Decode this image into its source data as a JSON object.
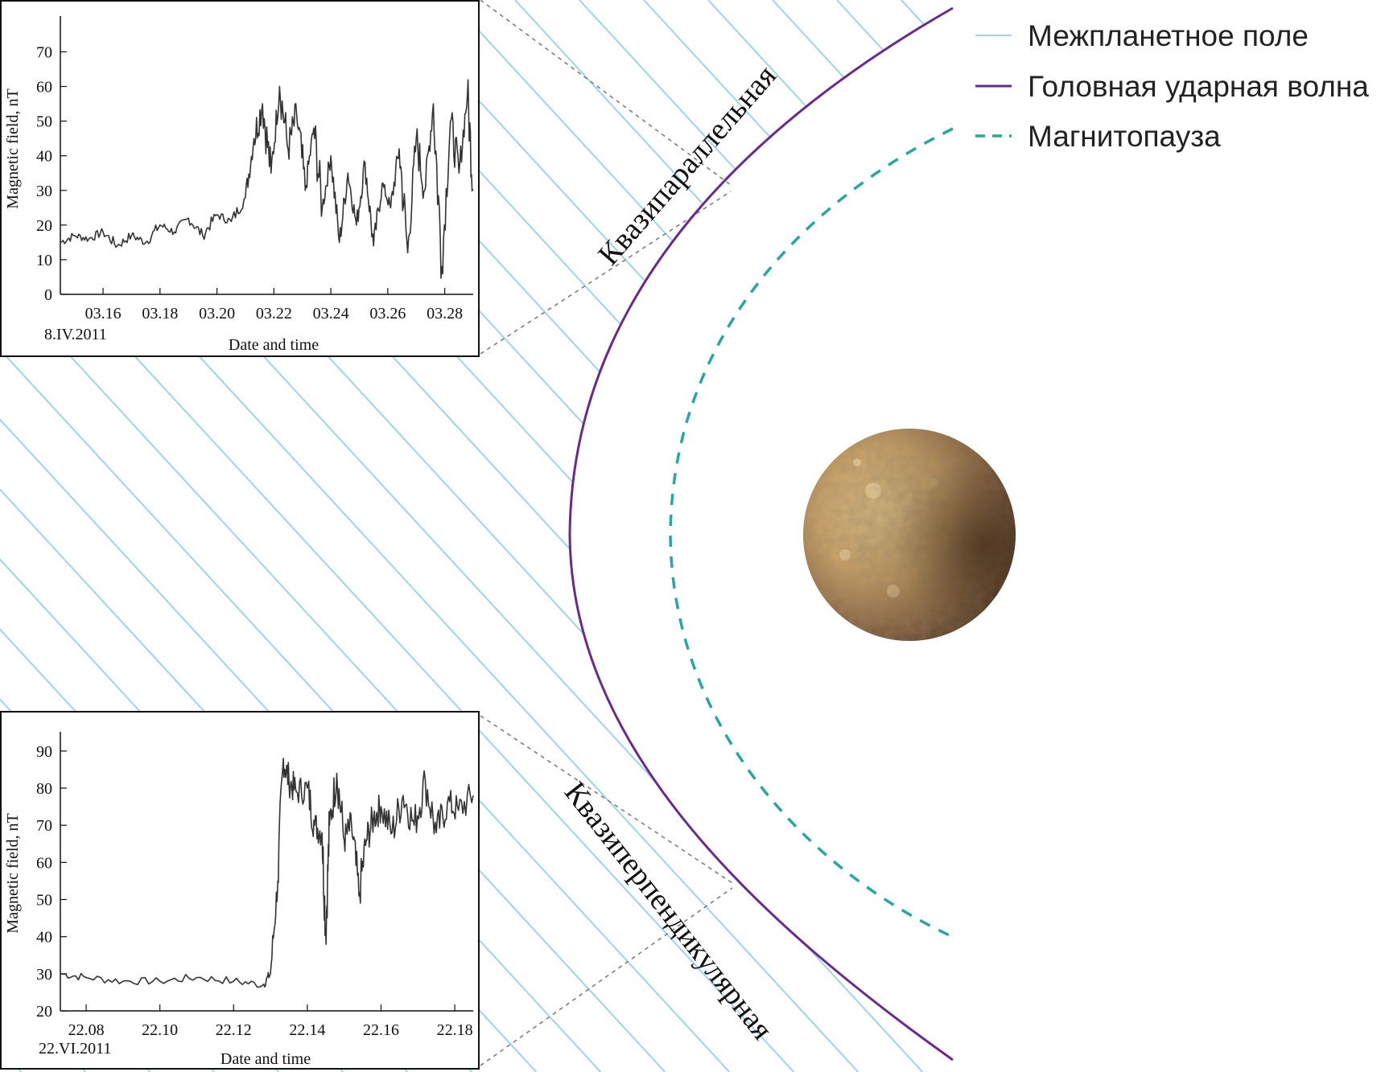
{
  "colors": {
    "interplanetary_field": "#9fd4e6",
    "bow_shock": "#6a2a8c",
    "magnetopause": "#2aa79b",
    "connector": "#777777",
    "trace": "#333333"
  },
  "legend": [
    {
      "key": "field",
      "label": "Межпланетное поле",
      "style": "solid-light-blue"
    },
    {
      "key": "shock",
      "label": "Головная ударная волна",
      "style": "solid-purple"
    },
    {
      "key": "magnetopause",
      "label": "Магнитопауза",
      "style": "dashed-teal"
    }
  ],
  "regions": {
    "quasi_parallel": "Квазипараллельная",
    "quasi_perpendicular": "Квазиперпендикулярная"
  },
  "planet": {
    "icon": "mercury-planet-icon"
  },
  "chart_data": [
    {
      "type": "line",
      "xlabel": "Date and time",
      "ylabel": "Magnetic field, nT",
      "date_label": "8.IV.2011",
      "xticks": [
        "03.16",
        "03.18",
        "03.20",
        "03.22",
        "03.24",
        "03.26",
        "03.28"
      ],
      "xlim": [
        "03.145",
        "03.290"
      ],
      "ylim": [
        0,
        78
      ],
      "yticks": [
        0,
        10,
        20,
        30,
        40,
        50,
        60,
        70
      ],
      "series": [
        {
          "x": [
            "03.145",
            "03.150",
            "03.155",
            "03.160",
            "03.165",
            "03.170",
            "03.175",
            "03.180",
            "03.185",
            "03.190",
            "03.195",
            "03.200",
            "03.205",
            "03.210",
            "03.213",
            "03.216",
            "03.219",
            "03.222",
            "03.225",
            "03.228",
            "03.231",
            "03.234",
            "03.237",
            "03.240",
            "03.243",
            "03.246",
            "03.249",
            "03.252",
            "03.255",
            "03.258",
            "03.261",
            "03.264",
            "03.267",
            "03.270",
            "03.273",
            "03.276",
            "03.279",
            "03.282",
            "03.285",
            "03.288",
            "03.290"
          ],
          "values": [
            15,
            17,
            16,
            18,
            14,
            17,
            15,
            20,
            18,
            22,
            17,
            23,
            21,
            28,
            45,
            55,
            35,
            60,
            42,
            52,
            30,
            48,
            25,
            40,
            15,
            35,
            20,
            38,
            14,
            32,
            25,
            42,
            12,
            45,
            30,
            55,
            8,
            50,
            35,
            58,
            30
          ]
        }
      ]
    },
    {
      "type": "line",
      "xlabel": "Date and time",
      "ylabel": "Magnetic field, nT",
      "date_label": "22.VI.2011",
      "xticks": [
        "22.08",
        "22.10",
        "22.12",
        "22.14",
        "22.16",
        "22.18"
      ],
      "xlim": [
        "22.073",
        "22.185"
      ],
      "ylim": [
        20,
        93
      ],
      "yticks": [
        20,
        30,
        40,
        50,
        60,
        70,
        80,
        90
      ],
      "series": [
        {
          "x": [
            "22.073",
            "22.080",
            "22.090",
            "22.100",
            "22.110",
            "22.120",
            "22.128",
            "22.130",
            "22.132",
            "22.1335",
            "22.135",
            "22.137",
            "22.140",
            "22.142",
            "22.144",
            "22.145",
            "22.146",
            "22.148",
            "22.150",
            "22.152",
            "22.154",
            "22.156",
            "22.158",
            "22.160",
            "22.163",
            "22.166",
            "22.169",
            "22.172",
            "22.175",
            "22.178",
            "22.181",
            "22.185"
          ],
          "values": [
            30,
            29,
            28,
            28,
            29,
            28,
            27,
            30,
            55,
            88,
            82,
            79,
            80,
            70,
            68,
            41,
            70,
            84,
            66,
            70,
            51,
            66,
            72,
            75,
            68,
            78,
            70,
            82,
            68,
            76,
            74,
            78
          ]
        }
      ]
    }
  ]
}
